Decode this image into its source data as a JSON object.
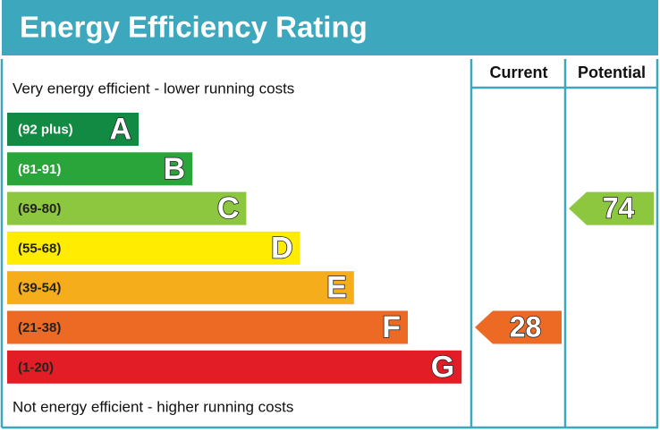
{
  "title": "Energy Efficiency Rating",
  "columns": [
    "Current",
    "Potential"
  ],
  "top_note": "Very energy efficient - lower running costs",
  "bottom_note": "Not energy efficient - higher running costs",
  "bands": [
    {
      "range": "(92 plus)",
      "letter": "A",
      "color": "#138a43",
      "text_color": "#ffffff"
    },
    {
      "range": "(81-91)",
      "letter": "B",
      "color": "#2aa539",
      "text_color": "#ffffff"
    },
    {
      "range": "(69-80)",
      "letter": "C",
      "color": "#8dc63f",
      "text_color": "#222222"
    },
    {
      "range": "(55-68)",
      "letter": "D",
      "color": "#ffec00",
      "text_color": "#222222"
    },
    {
      "range": "(39-54)",
      "letter": "E",
      "color": "#f6ad1c",
      "text_color": "#222222"
    },
    {
      "range": "(21-38)",
      "letter": "F",
      "color": "#ec6a24",
      "text_color": "#222222"
    },
    {
      "range": "(1-20)",
      "letter": "G",
      "color": "#e31d25",
      "text_color": "#222222"
    }
  ],
  "current": 28,
  "potential": 74
}
